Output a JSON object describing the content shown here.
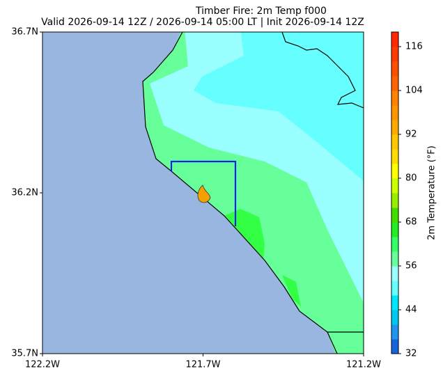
{
  "title": [
    "Timber Fire: 2m Temp f000",
    "Valid 2026-09-14 12Z / 2026-09-14 05:00 LT | Init 2026-09-14 12Z"
  ],
  "map": {
    "xlim": [
      -122.2,
      -121.2
    ],
    "ylim": [
      35.7,
      36.7
    ],
    "xticks": [
      {
        "value": -122.2,
        "label": "122.2W"
      },
      {
        "value": -121.7,
        "label": "121.7W"
      },
      {
        "value": -121.2,
        "label": "121.2W"
      }
    ],
    "yticks": [
      {
        "value": 35.7,
        "label": "35.7N"
      },
      {
        "value": 36.2,
        "label": "36.2N"
      },
      {
        "value": 36.7,
        "label": "36.7N"
      }
    ]
  },
  "colorbar": {
    "label": "2m Temperature (°F)",
    "clim": [
      32,
      120
    ],
    "ticks": [
      32,
      44,
      56,
      68,
      80,
      92,
      104,
      116
    ],
    "colors": [
      "#1464dc",
      "#1e96f0",
      "#00c8f0",
      "#00e6ff",
      "#66ffff",
      "#99ffff",
      "#66ff99",
      "#33ff66",
      "#22ee22",
      "#44dd00",
      "#99ee00",
      "#ccff00",
      "#ffff00",
      "#ffdd00",
      "#ffc800",
      "#ffaa00",
      "#ff9600",
      "#ff8200",
      "#ff6400",
      "#ff5000",
      "#ff3c00",
      "#ff2800"
    ]
  }
}
